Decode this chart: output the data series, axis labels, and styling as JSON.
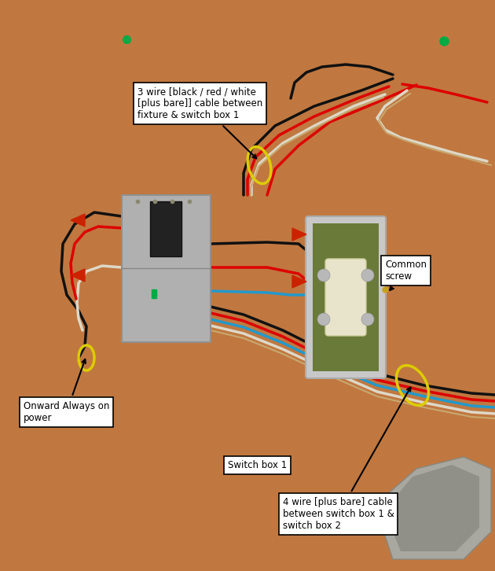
{
  "bg_color": "#c07840",
  "annotation1": "3 wire [black / red / white\n[plus bare]] cable between\nfixture & switch box 1",
  "annotation2_text": "Common\nscrew",
  "annotation3_text": "Onward Always on\npower",
  "annotation4_text": "Switch box 1",
  "annotation5_text": "4 wire [plus bare] cable\nbetween switch box 1 &\nswitch box 2",
  "wire_black": "#111111",
  "wire_red": "#dd0000",
  "wire_white": "#ddd8c8",
  "wire_blue": "#2299cc",
  "wire_bare": "#c8a870",
  "wire_lw": 2.2,
  "cap_red": "#cc2200"
}
